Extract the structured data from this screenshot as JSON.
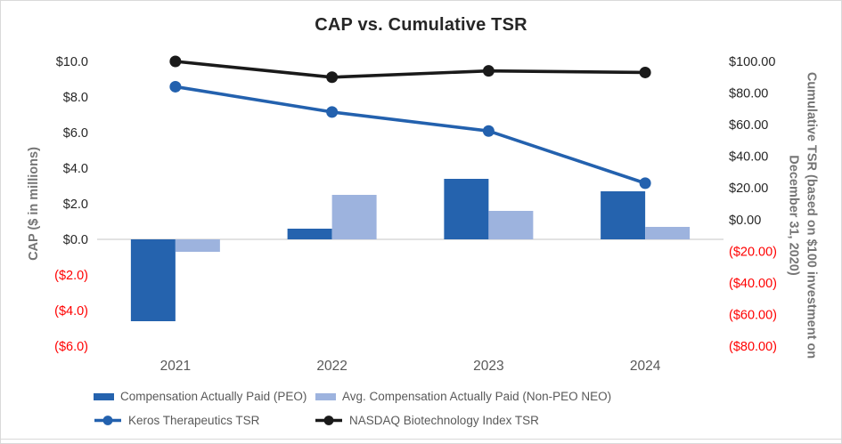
{
  "title": "CAP vs. Cumulative TSR",
  "left_axis": {
    "label": "CAP ($ in millions)",
    "ticks": [
      {
        "label": "$10.0",
        "value": 10
      },
      {
        "label": "$8.0",
        "value": 8
      },
      {
        "label": "$6.0",
        "value": 6
      },
      {
        "label": "$4.0",
        "value": 4
      },
      {
        "label": "$2.0",
        "value": 2
      },
      {
        "label": "$0.0",
        "value": 0
      },
      {
        "label": "($2.0)",
        "value": -2
      },
      {
        "label": "($4.0)",
        "value": -4
      },
      {
        "label": "($6.0)",
        "value": -6
      }
    ]
  },
  "right_axis": {
    "label_line1": "Cumulative TSR (based on $100 investment on",
    "label_line2": "December 31, 2020)",
    "ticks": [
      {
        "label": "$100.00",
        "value": 100
      },
      {
        "label": "$80.00",
        "value": 80
      },
      {
        "label": "$60.00",
        "value": 60
      },
      {
        "label": "$40.00",
        "value": 40
      },
      {
        "label": "$20.00",
        "value": 20
      },
      {
        "label": "$0.00",
        "value": 0
      },
      {
        "label": "($20.00)",
        "value": -20
      },
      {
        "label": "($40.00)",
        "value": -40
      },
      {
        "label": "($60.00)",
        "value": -60
      },
      {
        "label": "($80.00)",
        "value": -80
      }
    ]
  },
  "colors": {
    "tick_text": "#262626",
    "negative_tick": "#ff0000",
    "axis_title": "#757575",
    "year_label": "#595959",
    "legend_text": "#595959",
    "gridline": "#d9d9d9",
    "title_text": "#262626",
    "border": "#d9d9d9"
  },
  "chart_data": {
    "type": "combo",
    "categories": [
      "2021",
      "2022",
      "2023",
      "2024"
    ],
    "series": [
      {
        "key": "peo",
        "name": "Compensation Actually Paid (PEO)",
        "type": "bar",
        "axis": "left",
        "color": "#2563ae",
        "values": [
          -4.6,
          0.6,
          3.4,
          2.7
        ]
      },
      {
        "key": "non_peo",
        "name": "Avg. Compensation Actually Paid (Non-PEO NEO)",
        "type": "bar",
        "axis": "left",
        "color": "#9db3de",
        "values": [
          -0.7,
          2.5,
          1.6,
          0.7
        ]
      },
      {
        "key": "keros",
        "name": "Keros Therapeutics TSR",
        "type": "line",
        "axis": "right",
        "color": "#2361ae",
        "values": [
          84,
          68,
          56,
          23
        ]
      },
      {
        "key": "nasdaq",
        "name": "NASDAQ Biotechnology Index TSR",
        "type": "line",
        "axis": "right",
        "color": "#1a1a1a",
        "values": [
          100,
          90,
          94,
          93
        ]
      }
    ],
    "left_ylim": [
      -6,
      10
    ],
    "right_ylim": [
      -80,
      100
    ],
    "left_tick_step": 2,
    "right_tick_step": 20,
    "grid": "zero-line-only",
    "legend_position": "bottom"
  }
}
